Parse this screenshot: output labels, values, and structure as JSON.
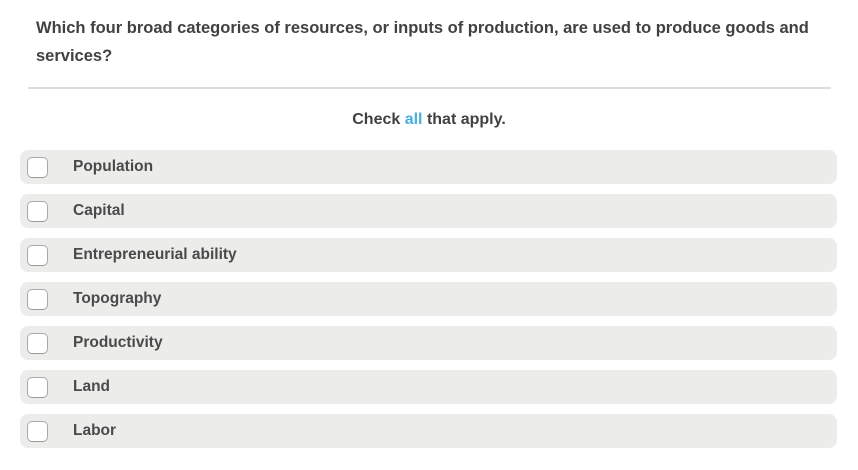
{
  "colors": {
    "accent_blue": "#4baee0",
    "option_bar_bg": "#ececea",
    "divider": "#dcdcdc",
    "question_text": "#414141",
    "label_text": "#4a4a4a",
    "checkbox_border": "#a9a9a9"
  },
  "question": {
    "text": "Which four broad categories of resources, or inputs of production, are used to produce goods and services?",
    "instruction": {
      "prefix": "Check ",
      "highlight": "all",
      "suffix": " that apply."
    },
    "options": [
      {
        "label": "Population",
        "checked": false
      },
      {
        "label": "Capital",
        "checked": false
      },
      {
        "label": "Entrepreneurial ability",
        "checked": false
      },
      {
        "label": "Topography",
        "checked": false
      },
      {
        "label": "Productivity",
        "checked": false
      },
      {
        "label": "Land",
        "checked": false
      },
      {
        "label": "Labor",
        "checked": false
      }
    ]
  }
}
